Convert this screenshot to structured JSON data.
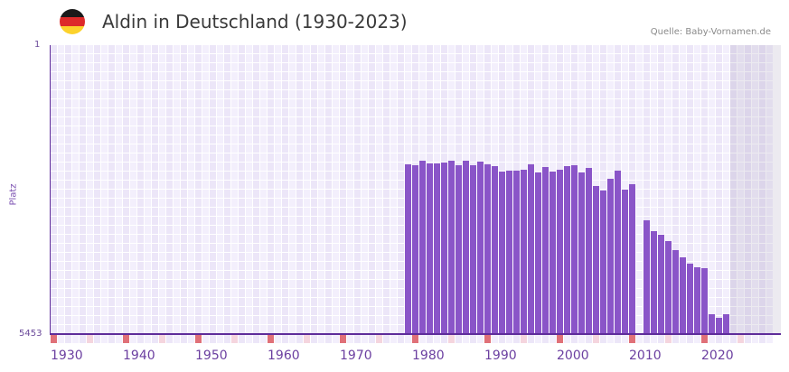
{
  "header": {
    "title": "Aldin in Deutschland (1930-2023)",
    "source": "Quelle: Baby-Vornamen.de",
    "flag": "germany-flag"
  },
  "colors": {
    "bar": "#8a55c8",
    "axis": "#5e2c9a",
    "decade_marker": "#e07078",
    "half_marker": "#f5d5de"
  },
  "chart_data": {
    "type": "bar",
    "title": "Aldin in Deutschland (1930-2023)",
    "xlabel": "",
    "ylabel": "Platz",
    "ylim": [
      5453,
      1
    ],
    "y_ticks": [
      "1",
      "5453"
    ],
    "x_ticks": [
      "1930",
      "1940",
      "1950",
      "1960",
      "1970",
      "1980",
      "1990",
      "2000",
      "2010",
      "2020"
    ],
    "x_range": [
      1930,
      2030
    ],
    "grid": true,
    "years": [
      1979,
      1980,
      1981,
      1982,
      1983,
      1984,
      1985,
      1986,
      1987,
      1988,
      1989,
      1990,
      1991,
      1992,
      1993,
      1994,
      1995,
      1996,
      1997,
      1998,
      1999,
      2000,
      2001,
      2002,
      2003,
      2004,
      2005,
      2006,
      2007,
      2008,
      2009,
      2010,
      2011,
      2012,
      2013,
      2014,
      2015,
      2016,
      2017,
      2018,
      2019,
      2020,
      2021,
      2022,
      2023
    ],
    "values": [
      2250,
      2267,
      2182,
      2233,
      2233,
      2216,
      2182,
      2267,
      2182,
      2267,
      2199,
      2250,
      2284,
      2386,
      2369,
      2369,
      2352,
      2250,
      2403,
      2301,
      2386,
      2352,
      2284,
      2267,
      2403,
      2318,
      2659,
      2744,
      2522,
      2369,
      2727,
      2625,
      null,
      3306,
      3511,
      3579,
      3698,
      3868,
      4005,
      4124,
      4192,
      4209,
      5078,
      5146,
      5078
    ]
  },
  "axis": {
    "y_top": "1",
    "y_bottom": "5453",
    "y_label": "Platz"
  }
}
